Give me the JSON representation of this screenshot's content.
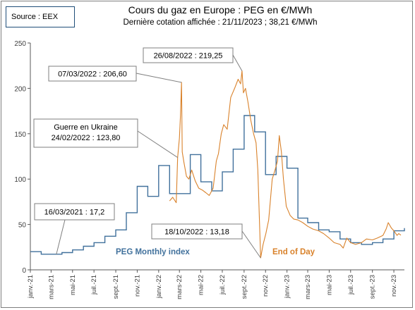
{
  "source_label": "Source : EEX",
  "chart_data": {
    "type": "line",
    "title": "Cours du gaz en Europe : PEG en €/MWh",
    "subtitle": "Dernière cotation affichée : 21/11/2023 ; 38,21 €/MWh",
    "xlabel": "",
    "ylabel": "",
    "ylim": [
      0,
      250
    ],
    "yticks": [
      0,
      50,
      100,
      150,
      200,
      250
    ],
    "xlim": [
      "2021-01",
      "2023-12"
    ],
    "xticks": [
      {
        "label": "janv.-21",
        "date": "2021-01"
      },
      {
        "label": "mars-21",
        "date": "2021-03"
      },
      {
        "label": "mai-21",
        "date": "2021-05"
      },
      {
        "label": "juil.-21",
        "date": "2021-07"
      },
      {
        "label": "sept.-21",
        "date": "2021-09"
      },
      {
        "label": "nov.-21",
        "date": "2021-11"
      },
      {
        "label": "janv.-22",
        "date": "2022-01"
      },
      {
        "label": "mars-22",
        "date": "2022-03"
      },
      {
        "label": "mai-22",
        "date": "2022-05"
      },
      {
        "label": "juil.-22",
        "date": "2022-07"
      },
      {
        "label": "sept.-22",
        "date": "2022-09"
      },
      {
        "label": "nov.-22",
        "date": "2022-11"
      },
      {
        "label": "janv.-23",
        "date": "2023-01"
      },
      {
        "label": "mars-23",
        "date": "2023-03"
      },
      {
        "label": "mai-23",
        "date": "2023-05"
      },
      {
        "label": "juil.-23",
        "date": "2023-07"
      },
      {
        "label": "sept.-23",
        "date": "2023-09"
      },
      {
        "label": "nov.-23",
        "date": "2023-11"
      }
    ],
    "grid": false,
    "colors": {
      "monthly": "#41719c",
      "eod": "#d9822b",
      "annotation_line": "#7f7f7f",
      "axis": "#595959"
    },
    "series": [
      {
        "name": "PEG Monthly index",
        "style": "step",
        "x": [
          "2021-01",
          "2021-02",
          "2021-03",
          "2021-04",
          "2021-05",
          "2021-06",
          "2021-07",
          "2021-08",
          "2021-09",
          "2021-10",
          "2021-11",
          "2021-12",
          "2022-01",
          "2022-02",
          "2022-03",
          "2022-04",
          "2022-05",
          "2022-06",
          "2022-07",
          "2022-08",
          "2022-09",
          "2022-10",
          "2022-11",
          "2022-12",
          "2023-01",
          "2023-02",
          "2023-03",
          "2023-04",
          "2023-05",
          "2023-06",
          "2023-07",
          "2023-08",
          "2023-09",
          "2023-10",
          "2023-11",
          "2023-12"
        ],
        "values": [
          20,
          17.2,
          17.2,
          19,
          22,
          26,
          30,
          37,
          44,
          63,
          92,
          81,
          115,
          84,
          84,
          127,
          97,
          87,
          108,
          133,
          170,
          152,
          105,
          125,
          112,
          57,
          52,
          44,
          42,
          34,
          30,
          28,
          30,
          34,
          43,
          46
        ]
      },
      {
        "name": "End of Day",
        "style": "line",
        "x": [
          "2022-02-01",
          "2022-02-10",
          "2022-02-20",
          "2022-02-24",
          "2022-03-01",
          "2022-03-04",
          "2022-03-07",
          "2022-03-09",
          "2022-03-14",
          "2022-03-21",
          "2022-03-28",
          "2022-04-05",
          "2022-04-15",
          "2022-04-25",
          "2022-05-05",
          "2022-05-15",
          "2022-05-25",
          "2022-06-05",
          "2022-06-14",
          "2022-06-20",
          "2022-06-28",
          "2022-07-05",
          "2022-07-15",
          "2022-07-25",
          "2022-08-05",
          "2022-08-15",
          "2022-08-22",
          "2022-08-26",
          "2022-08-30",
          "2022-09-05",
          "2022-09-12",
          "2022-09-20",
          "2022-09-28",
          "2022-10-05",
          "2022-10-10",
          "2022-10-18",
          "2022-10-25",
          "2022-11-02",
          "2022-11-10",
          "2022-11-20",
          "2022-11-28",
          "2022-12-05",
          "2022-12-10",
          "2022-12-16",
          "2022-12-22",
          "2022-12-30",
          "2023-01-10",
          "2023-01-20",
          "2023-02-01",
          "2023-02-15",
          "2023-03-01",
          "2023-03-15",
          "2023-04-01",
          "2023-04-15",
          "2023-05-01",
          "2023-05-15",
          "2023-06-01",
          "2023-06-10",
          "2023-06-20",
          "2023-07-01",
          "2023-07-15",
          "2023-08-01",
          "2023-08-15",
          "2023-09-01",
          "2023-09-15",
          "2023-10-01",
          "2023-10-10",
          "2023-10-16",
          "2023-10-25",
          "2023-11-01",
          "2023-11-10",
          "2023-11-15",
          "2023-11-21"
        ],
        "values": [
          76,
          80,
          74,
          123.8,
          145,
          170,
          206.6,
          130,
          118,
          103,
          100,
          110,
          98,
          90,
          88,
          85,
          82,
          90,
          120,
          128,
          150,
          160,
          155,
          190,
          200,
          210,
          205,
          219.25,
          195,
          200,
          185,
          165,
          150,
          140,
          110,
          13.18,
          28,
          40,
          55,
          100,
          110,
          120,
          148,
          130,
          100,
          70,
          60,
          56,
          55,
          52,
          48,
          45,
          43,
          40,
          35,
          30,
          28,
          24,
          35,
          30,
          28,
          30,
          34,
          33,
          35,
          38,
          45,
          52,
          46,
          43,
          38,
          40,
          38.21
        ]
      }
    ],
    "annotations": [
      {
        "text": "26/08/2022 : 219,25",
        "x": "2022-08-26",
        "y": 219.25
      },
      {
        "text": "07/03/2022 : 206,60",
        "x": "2022-03-07",
        "y": 206.6
      },
      {
        "text_lines": [
          "Guerre en Ukraine",
          "24/02/2022 : 123,80"
        ],
        "x": "2022-02-24",
        "y": 123.8
      },
      {
        "text": "16/03/2021 : 17,2",
        "x": "2021-03-16",
        "y": 17.2
      },
      {
        "text": "18/10/2022 : 13,18",
        "x": "2022-10-18",
        "y": 13.18
      }
    ],
    "series_labels": [
      {
        "text": "PEG Monthly index",
        "color": "#41719c"
      },
      {
        "text": "End of Day",
        "color": "#d9822b"
      }
    ]
  }
}
